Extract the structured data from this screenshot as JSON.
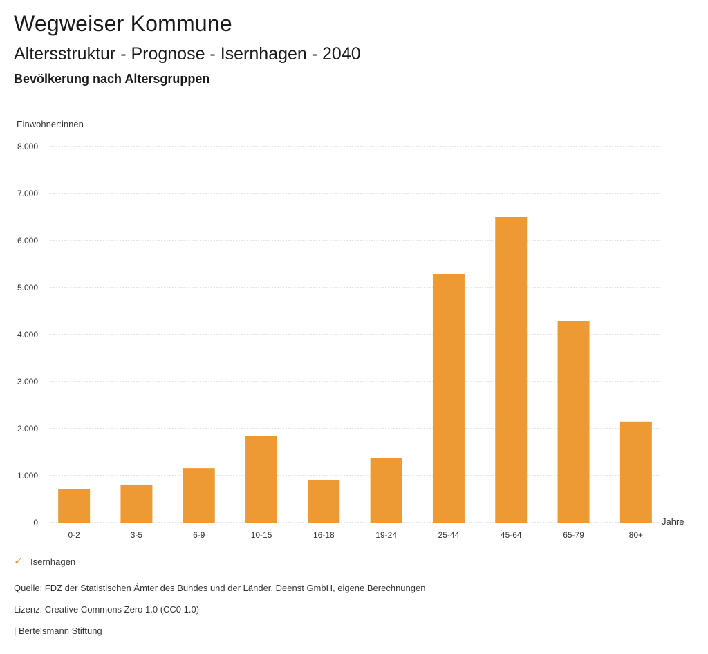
{
  "header": {
    "title": "Wegweiser Kommune",
    "subtitle": "Altersstruktur - Prognose - Isernhagen - 2040",
    "chart_heading": "Bevölkerung nach Altersgruppen"
  },
  "colors": {
    "bar": "#ED9A35",
    "grid": "#c8c8c8"
  },
  "chart_data": {
    "type": "bar",
    "title": "Bevölkerung nach Altersgruppen",
    "ylabel": "Einwohner:innen",
    "xlabel": "Jahre",
    "ylim": [
      0,
      8000
    ],
    "yticks": [
      0,
      1000,
      2000,
      3000,
      4000,
      5000,
      6000,
      7000,
      8000
    ],
    "ytick_labels": [
      "0",
      "1.000",
      "2.000",
      "3.000",
      "4.000",
      "5.000",
      "6.000",
      "7.000",
      "8.000"
    ],
    "categories": [
      "0-2",
      "3-5",
      "6-9",
      "10-15",
      "16-18",
      "19-24",
      "25-44",
      "45-64",
      "65-79",
      "80+"
    ],
    "series": [
      {
        "name": "Isernhagen",
        "values": [
          720,
          810,
          1160,
          1840,
          910,
          1380,
          5290,
          6500,
          4290,
          2150
        ]
      }
    ],
    "grid": true
  },
  "legend": {
    "label": "Isernhagen",
    "icon": "check-icon"
  },
  "footer": {
    "source": "Quelle: FDZ der Statistischen Ämter des Bundes und der Länder, Deenst GmbH, eigene Berechnungen",
    "license": "Lizenz: Creative Commons Zero 1.0 (CC0 1.0)",
    "publisher": "| Bertelsmann Stiftung"
  }
}
